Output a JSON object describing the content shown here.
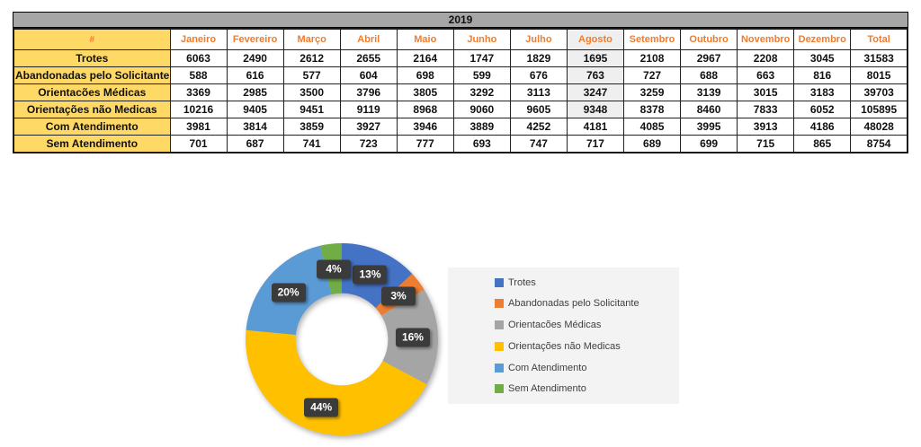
{
  "table": {
    "year": "2019",
    "corner_label": "#",
    "columns": [
      "Janeiro",
      "Fevereiro",
      "Março",
      "Abril",
      "Maio",
      "Junho",
      "Julho",
      "Agosto",
      "Setembro",
      "Outubro",
      "Novembro",
      "Dezembro",
      "Total"
    ],
    "highlighted_column": "Agosto",
    "highlighted_column_index": 7,
    "highlighted_row_indices": [
      0,
      1,
      2,
      3
    ],
    "rows": [
      {
        "label": "Trotes",
        "values": [
          6063,
          2490,
          2612,
          2655,
          2164,
          1747,
          1829,
          1695,
          2108,
          2967,
          2208,
          3045,
          31583
        ]
      },
      {
        "label": "Abandonadas pelo Solicitante",
        "values": [
          588,
          616,
          577,
          604,
          698,
          599,
          676,
          763,
          727,
          688,
          663,
          816,
          8015
        ]
      },
      {
        "label": "Orientacões Médicas",
        "values": [
          3369,
          2985,
          3500,
          3796,
          3805,
          3292,
          3113,
          3247,
          3259,
          3139,
          3015,
          3183,
          39703
        ]
      },
      {
        "label": "Orientações não Medicas",
        "values": [
          10216,
          9405,
          9451,
          9119,
          8968,
          9060,
          9605,
          9348,
          8378,
          8460,
          7833,
          6052,
          105895
        ]
      },
      {
        "label": "Com Atendimento",
        "values": [
          3981,
          3814,
          3859,
          3927,
          3946,
          3889,
          4252,
          4181,
          4085,
          3995,
          3913,
          4186,
          48028
        ]
      },
      {
        "label": "Sem Atendimento",
        "values": [
          701,
          687,
          741,
          723,
          777,
          693,
          747,
          717,
          689,
          699,
          715,
          865,
          8754
        ]
      }
    ]
  },
  "chart_data": {
    "type": "pie",
    "subtype": "donut",
    "categories": [
      "Trotes",
      "Abandonadas pelo Solicitante",
      "Orientacões Médicas",
      "Orientações não Medicas",
      "Com Atendimento",
      "Sem Atendimento"
    ],
    "values": [
      31583,
      8015,
      39703,
      105895,
      48028,
      8754
    ],
    "percent_labels": [
      "13%",
      "3%",
      "16%",
      "44%",
      "20%",
      "4%"
    ],
    "colors": [
      "#4472C4",
      "#ED7D31",
      "#A5A5A5",
      "#FFC000",
      "#5B9BD5",
      "#70AD47"
    ],
    "start_angle_deg": 0,
    "hole_ratio": 0.48,
    "legend_position": "right",
    "grid": false,
    "title": ""
  },
  "colors": {
    "header_fill": "#A6A6A6",
    "label_fill": "#FFD966",
    "month_text": "#ED7D31",
    "highlight_fill": "#EFEFEF",
    "legend_bg": "#F3F3F3",
    "datalabel_bg": "#3B3B3B",
    "datalabel_text": "#FFFFFF"
  }
}
